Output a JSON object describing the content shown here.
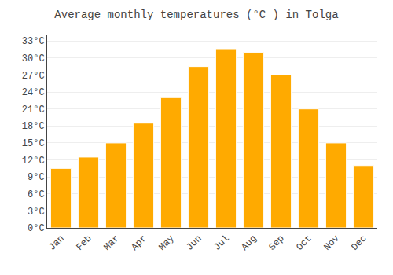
{
  "chart_data": {
    "type": "bar",
    "title": "Average monthly temperatures (°C ) in Tolga",
    "categories": [
      "Jan",
      "Feb",
      "Mar",
      "Apr",
      "May",
      "Jun",
      "Jul",
      "Aug",
      "Sep",
      "Oct",
      "Nov",
      "Dec"
    ],
    "values": [
      10.5,
      12.5,
      15.0,
      18.5,
      23.0,
      28.5,
      31.5,
      31.0,
      27.0,
      21.0,
      15.0,
      11.0
    ],
    "color": "#FFAA00",
    "ylim": [
      0,
      34
    ],
    "yticks": [
      {
        "value": 0,
        "label": "0°C"
      },
      {
        "value": 3,
        "label": "3°C"
      },
      {
        "value": 6,
        "label": "6°C"
      },
      {
        "value": 9,
        "label": "9°C"
      },
      {
        "value": 12,
        "label": "12°C"
      },
      {
        "value": 15,
        "label": "15°C"
      },
      {
        "value": 18,
        "label": "18°C"
      },
      {
        "value": 21,
        "label": "21°C"
      },
      {
        "value": 24,
        "label": "24°C"
      },
      {
        "value": 27,
        "label": "27°C"
      },
      {
        "value": 30,
        "label": "30°C"
      },
      {
        "value": 33,
        "label": "33°C"
      }
    ],
    "grid": true
  }
}
